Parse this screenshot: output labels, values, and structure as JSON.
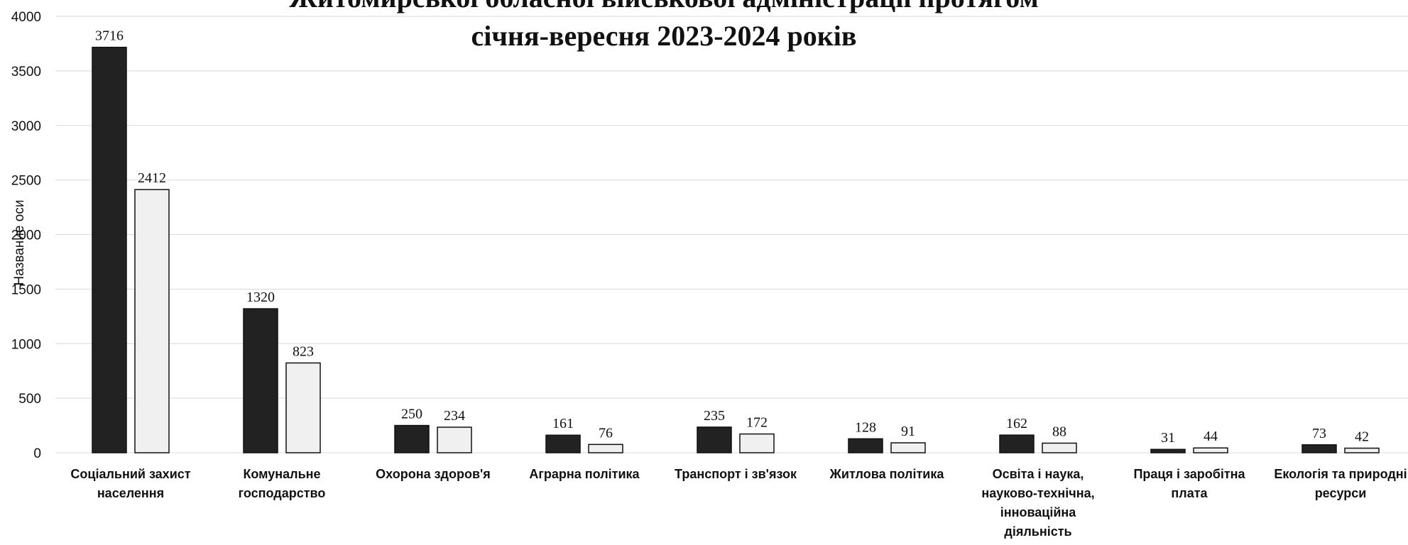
{
  "chart_data": {
    "type": "bar",
    "title_lines": [
      "Житомирської обласної військової адміністрації протягом",
      "січня-вересня 2023-2024 років"
    ],
    "ylabel": "Название оси",
    "ylim": [
      0,
      4000
    ],
    "yticks": [
      "0",
      "500",
      "1000",
      "1500",
      "2000",
      "2500",
      "3000",
      "3500",
      "4000"
    ],
    "grid": true,
    "categories": [
      [
        "Соціальний захист",
        "населення"
      ],
      [
        "Комунальне",
        "господарство"
      ],
      [
        "Охорона здоров'я"
      ],
      [
        "Аграрна політика"
      ],
      [
        "Транспорт і зв'язок"
      ],
      [
        "Житлова політика"
      ],
      [
        "Освіта і наука,",
        "науково-технічна,",
        "інноваційна",
        "діяльність"
      ],
      [
        "Праця і заробітна",
        "плата"
      ],
      [
        "Екологія та природні",
        "ресурси"
      ]
    ],
    "series": [
      {
        "color": "#222222",
        "values": [
          3716,
          1320,
          250,
          161,
          235,
          128,
          162,
          31,
          73
        ]
      },
      {
        "color": "#f0f0f0",
        "values": [
          2412,
          823,
          234,
          76,
          172,
          91,
          88,
          44,
          42
        ]
      }
    ]
  }
}
